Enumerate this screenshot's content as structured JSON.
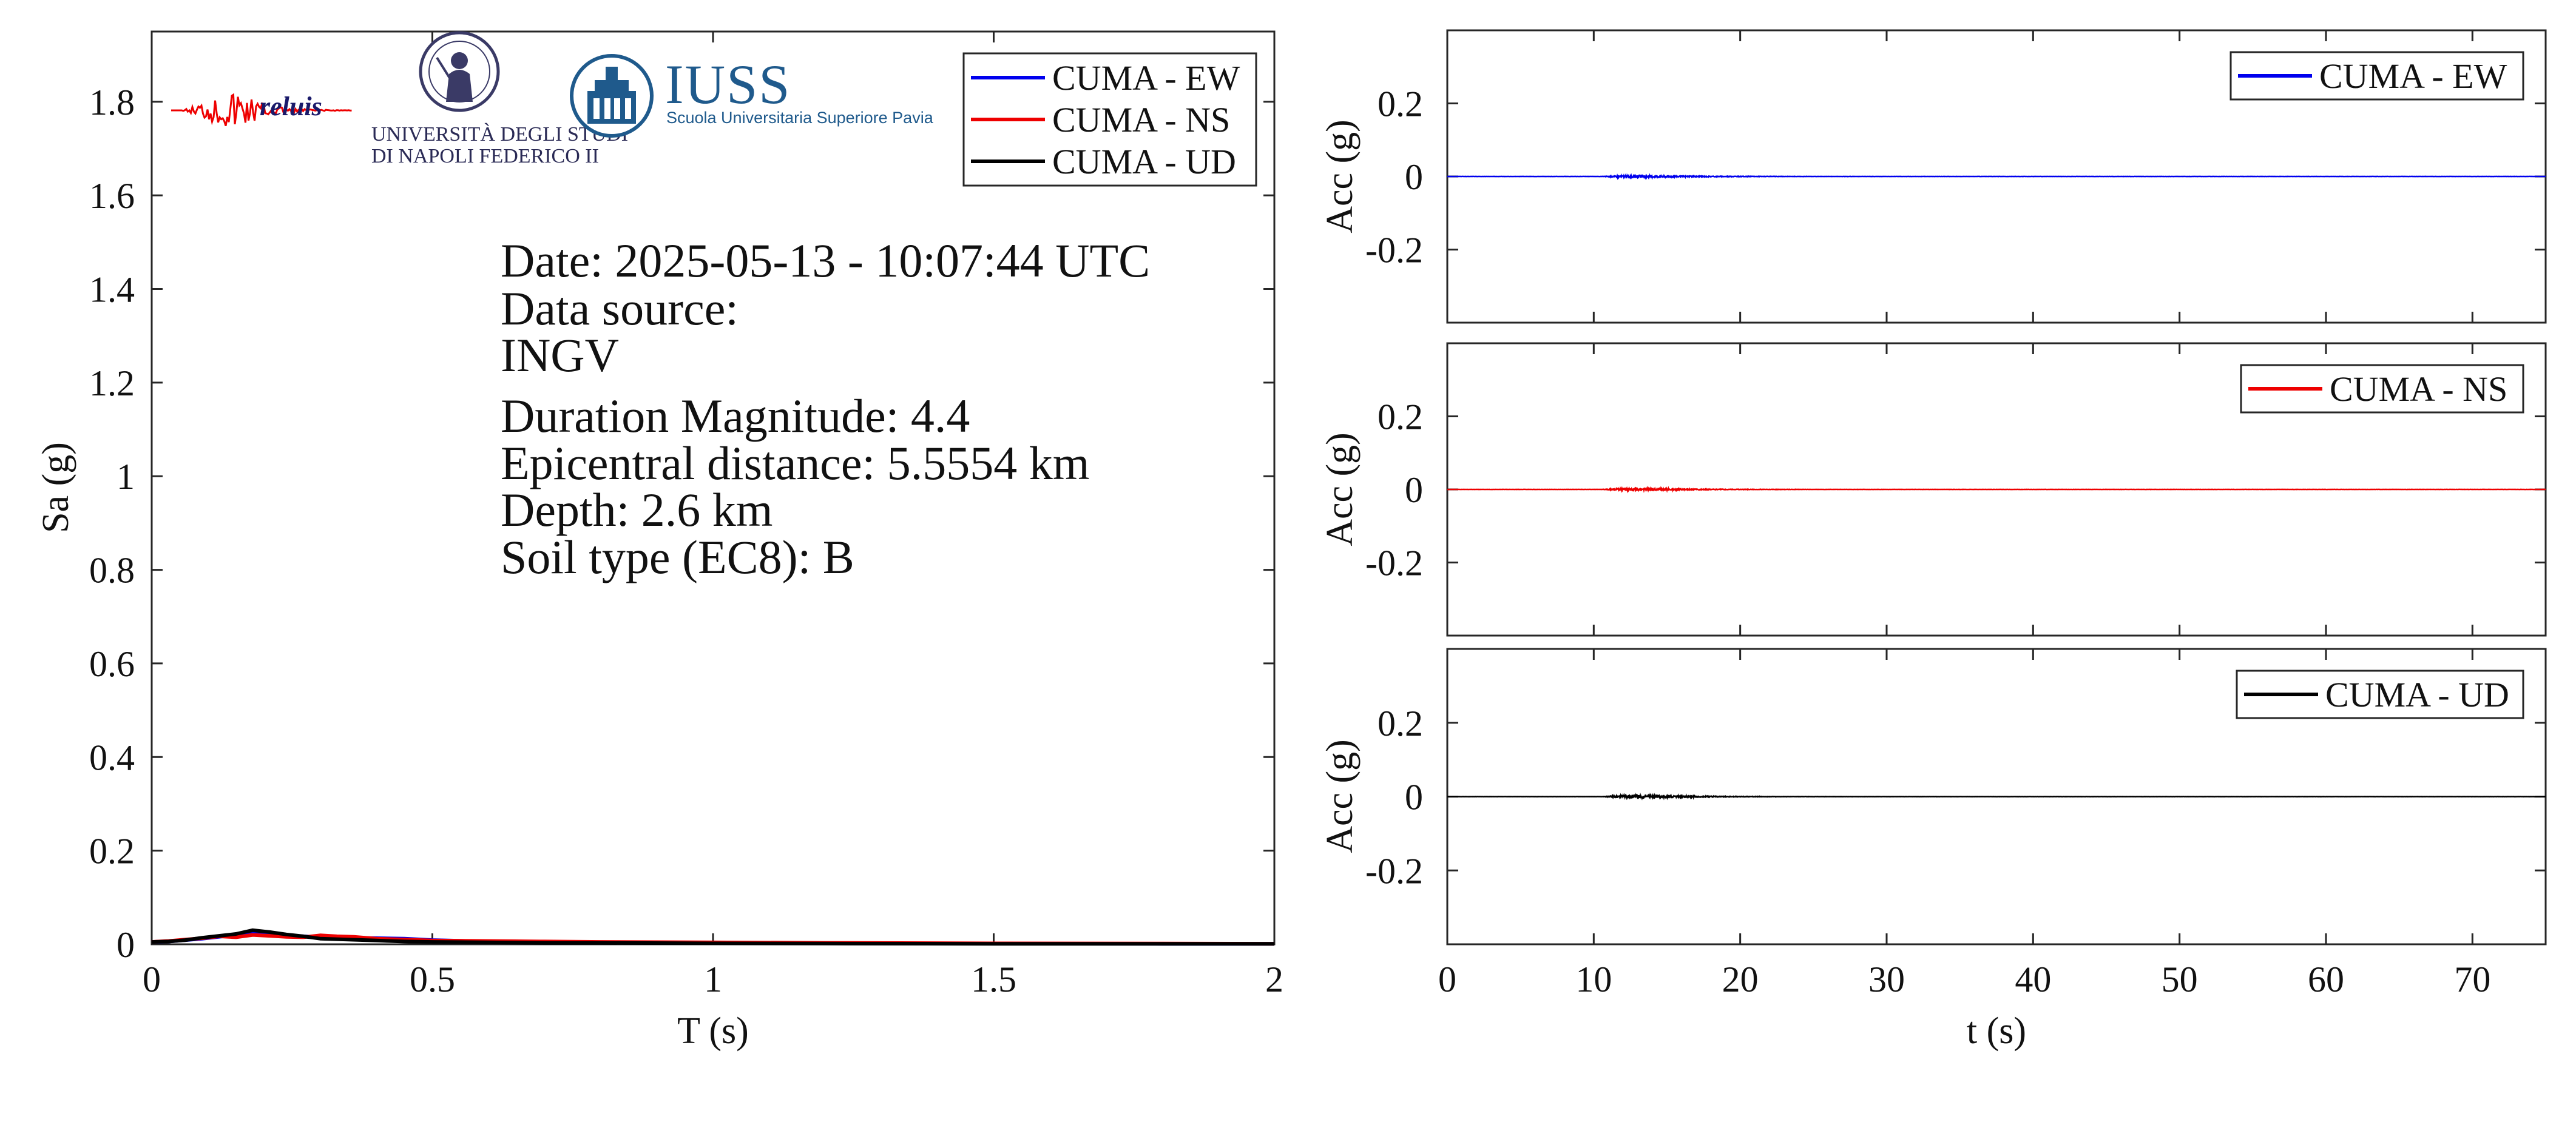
{
  "colors": {
    "ew": "#0000ee",
    "ns": "#ee0000",
    "ud": "#000000",
    "axis": "#262626",
    "iuss_blue": "#1f5a8c"
  },
  "logos": {
    "reluis": "reluis",
    "unina_line1": "UNIVERSITÀ DEGLI STUDI",
    "unina_line2": "DI NAPOLI FEDERICO II",
    "iuss": "IUSS",
    "iuss_sub": "Scuola Universitaria Superiore Pavia"
  },
  "info": {
    "date": "Date: 2025-05-13 - 10:07:44 UTC",
    "source_label": "Data source:",
    "source_value": "INGV",
    "magnitude": "Duration Magnitude: 4.4",
    "distance": "Epicentral distance: 5.5554 km",
    "depth": "Depth: 2.6 km",
    "soil": "Soil type (EC8): B"
  },
  "chart_data": [
    {
      "type": "line",
      "id": "spectrum",
      "xlabel": "T (s)",
      "ylabel": "Sa (g)",
      "xlim": [
        0,
        2
      ],
      "ylim": [
        0,
        1.95
      ],
      "xticks": [
        0,
        0.5,
        1,
        1.5,
        2
      ],
      "xtick_labels": [
        "0",
        "0.5",
        "1",
        "1.5",
        "2"
      ],
      "yticks": [
        0,
        0.2,
        0.4,
        0.6,
        0.8,
        1,
        1.2,
        1.4,
        1.6,
        1.8
      ],
      "ytick_labels": [
        "0",
        "0.2",
        "0.4",
        "0.6",
        "0.8",
        "1",
        "1.2",
        "1.4",
        "1.6",
        "1.8"
      ],
      "grid": false,
      "legend": "top-right",
      "series": [
        {
          "name": "CUMA - EW",
          "color": "#0000ee",
          "x": [
            0,
            0.03,
            0.06,
            0.09,
            0.12,
            0.15,
            0.18,
            0.21,
            0.24,
            0.27,
            0.3,
            0.35,
            0.4,
            0.45,
            0.5,
            0.6,
            0.7,
            0.8,
            1.0,
            1.2,
            1.5,
            1.8,
            2.0
          ],
          "y": [
            0.005,
            0.006,
            0.009,
            0.012,
            0.016,
            0.02,
            0.024,
            0.022,
            0.019,
            0.017,
            0.015,
            0.014,
            0.013,
            0.012,
            0.009,
            0.006,
            0.005,
            0.004,
            0.003,
            0.002,
            0.0015,
            0.001,
            0.001
          ]
        },
        {
          "name": "CUMA - NS",
          "color": "#ee0000",
          "x": [
            0,
            0.03,
            0.06,
            0.09,
            0.12,
            0.15,
            0.18,
            0.21,
            0.24,
            0.27,
            0.3,
            0.33,
            0.36,
            0.4,
            0.45,
            0.5,
            0.6,
            0.7,
            0.8,
            1.0,
            1.2,
            1.5,
            1.8,
            2.0
          ],
          "y": [
            0.005,
            0.007,
            0.01,
            0.013,
            0.017,
            0.015,
            0.02,
            0.018,
            0.016,
            0.015,
            0.019,
            0.017,
            0.016,
            0.012,
            0.01,
            0.008,
            0.007,
            0.006,
            0.005,
            0.004,
            0.003,
            0.002,
            0.0015,
            0.001
          ]
        },
        {
          "name": "CUMA - UD",
          "color": "#000000",
          "x": [
            0,
            0.03,
            0.06,
            0.09,
            0.12,
            0.15,
            0.18,
            0.21,
            0.24,
            0.27,
            0.3,
            0.35,
            0.4,
            0.45,
            0.5,
            0.6,
            0.7,
            0.8,
            1.0,
            1.2,
            1.5,
            1.8,
            2.0
          ],
          "y": [
            0.005,
            0.006,
            0.009,
            0.014,
            0.018,
            0.022,
            0.03,
            0.026,
            0.021,
            0.017,
            0.012,
            0.01,
            0.008,
            0.006,
            0.005,
            0.004,
            0.003,
            0.003,
            0.002,
            0.0015,
            0.001,
            0.001,
            0.001
          ]
        }
      ]
    },
    {
      "type": "line",
      "id": "acc-ew",
      "xlabel": "",
      "ylabel": "Acc (g)",
      "xlim": [
        0,
        75
      ],
      "ylim": [
        -0.4,
        0.4
      ],
      "yticks": [
        -0.2,
        0,
        0.2
      ],
      "ytick_labels": [
        "-0.2",
        "0",
        "0.2"
      ],
      "grid": false,
      "legend": "top-right",
      "series": [
        {
          "name": "CUMA - EW",
          "color": "#0000ee",
          "duration": 75,
          "onset": 10.5,
          "peak_time": 12.5,
          "peak": 0.004,
          "decay": 4.0
        }
      ]
    },
    {
      "type": "line",
      "id": "acc-ns",
      "xlabel": "",
      "ylabel": "Acc (g)",
      "xlim": [
        0,
        75
      ],
      "ylim": [
        -0.4,
        0.4
      ],
      "yticks": [
        -0.2,
        0,
        0.2
      ],
      "ytick_labels": [
        "-0.2",
        "0",
        "0.2"
      ],
      "grid": false,
      "legend": "top-right",
      "series": [
        {
          "name": "CUMA - NS",
          "color": "#ee0000",
          "duration": 75,
          "onset": 10.5,
          "peak_time": 12.5,
          "peak": 0.004,
          "decay": 4.0
        }
      ]
    },
    {
      "type": "line",
      "id": "acc-ud",
      "xlabel": "t (s)",
      "ylabel": "Acc (g)",
      "xlim": [
        0,
        75
      ],
      "ylim": [
        -0.4,
        0.4
      ],
      "xticks": [
        0,
        10,
        20,
        30,
        40,
        50,
        60,
        70
      ],
      "xtick_labels": [
        "0",
        "10",
        "20",
        "30",
        "40",
        "50",
        "60",
        "70"
      ],
      "yticks": [
        -0.2,
        0,
        0.2
      ],
      "ytick_labels": [
        "-0.2",
        "0",
        "0.2"
      ],
      "grid": false,
      "legend": "top-right",
      "series": [
        {
          "name": "CUMA - UD",
          "color": "#000000",
          "duration": 75,
          "onset": 10.5,
          "peak_time": 12.5,
          "peak": 0.005,
          "decay": 4.0
        }
      ]
    }
  ]
}
